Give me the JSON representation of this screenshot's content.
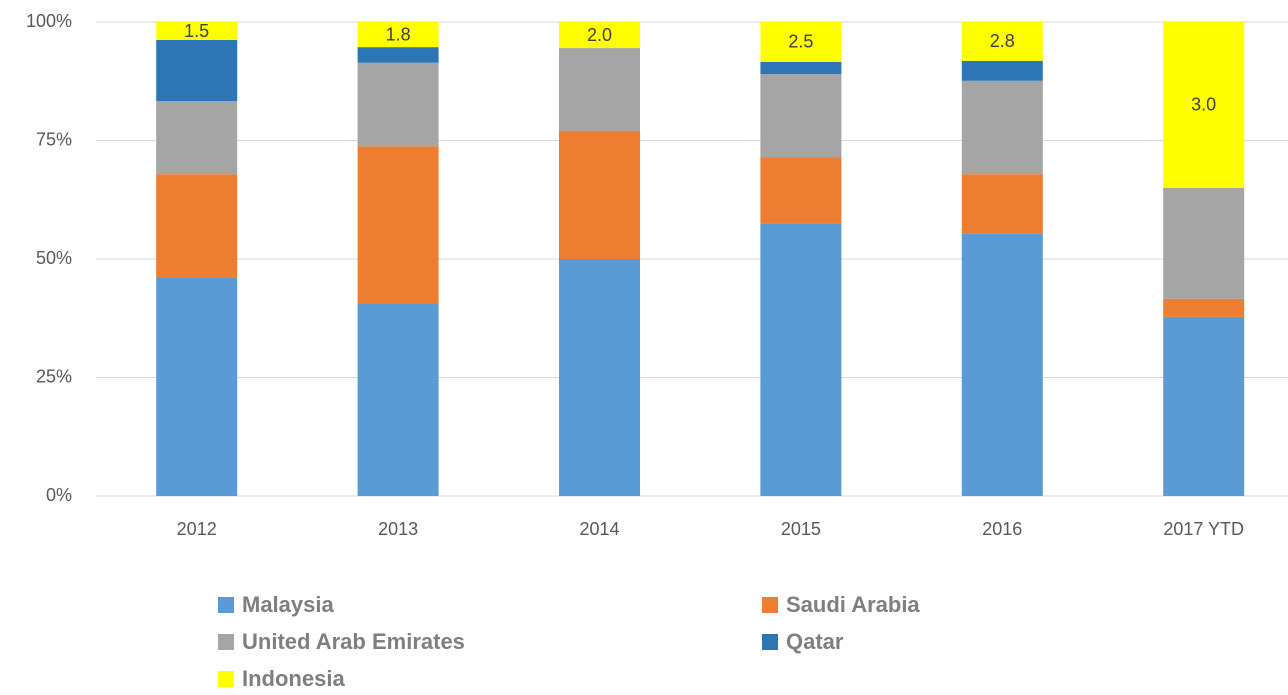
{
  "chart_data": {
    "type": "stacked_bar",
    "categories": [
      "2012",
      "2013",
      "2014",
      "2015",
      "2016",
      "2017 YTD"
    ],
    "series": [
      {
        "name": "Malaysia",
        "color": "#5b9bd5",
        "values": [
          46.0,
          40.7,
          50.0,
          57.4,
          55.3,
          37.8
        ]
      },
      {
        "name": "Saudi Arabia",
        "color": "#ed7d31",
        "values": [
          21.9,
          33.1,
          27.0,
          14.1,
          12.6,
          3.8
        ]
      },
      {
        "name": "United Arab Emirates",
        "color": "#a5a5a5",
        "values": [
          15.4,
          17.6,
          17.5,
          17.5,
          19.7,
          23.4
        ]
      },
      {
        "name": "Qatar",
        "color": "#2e75b6",
        "values": [
          12.9,
          3.3,
          0,
          2.6,
          4.2,
          0
        ]
      },
      {
        "name": "Indonesia",
        "color": "#ffff00",
        "values": [
          3.8,
          5.3,
          5.5,
          8.4,
          8.2,
          35.0
        ],
        "labels": [
          "1.5",
          "1.8",
          "2.0",
          "2.5",
          "2.8",
          "3.0"
        ]
      }
    ],
    "ylim": [
      0,
      100
    ],
    "yticks": [
      {
        "value": 0,
        "label": "0%"
      },
      {
        "value": 25,
        "label": "25%"
      },
      {
        "value": 50,
        "label": "50%"
      },
      {
        "value": 75,
        "label": "75%"
      },
      {
        "value": 100,
        "label": "100%"
      }
    ],
    "grid": true,
    "legend": "bottom"
  }
}
